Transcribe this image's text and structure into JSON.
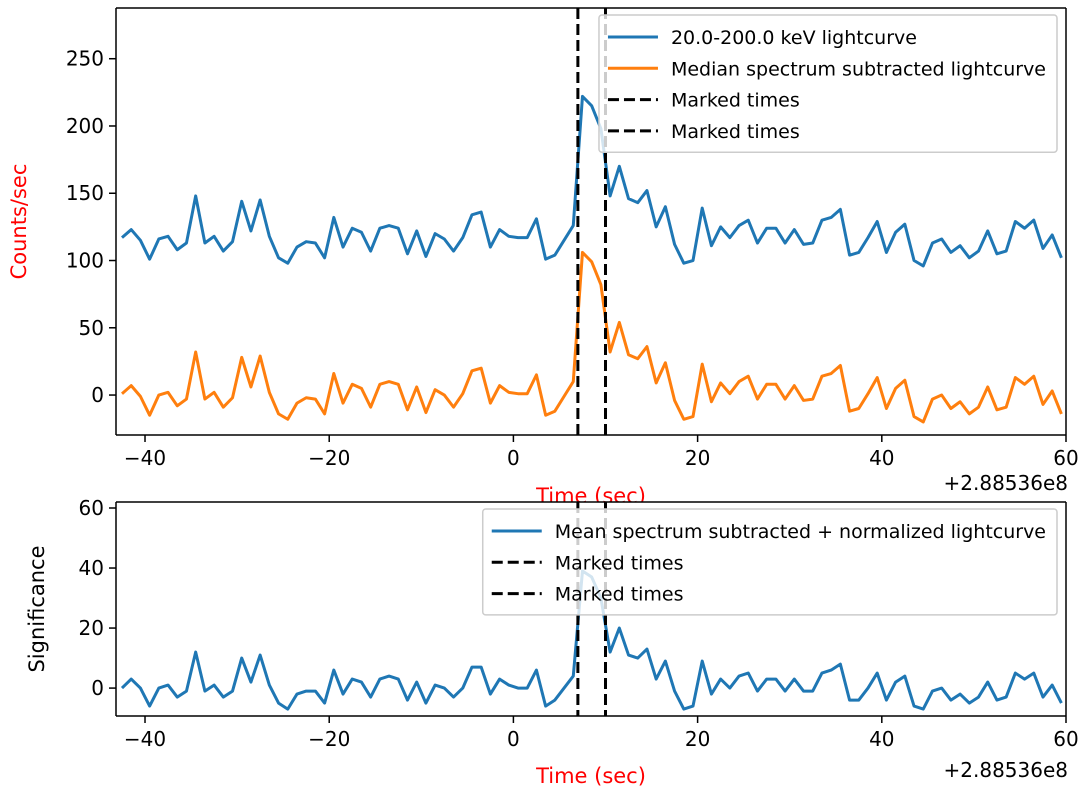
{
  "chart_data": [
    {
      "type": "line",
      "x": [
        -42.5,
        -41.5,
        -40.5,
        -39.5,
        -38.5,
        -37.5,
        -36.5,
        -35.5,
        -34.5,
        -33.5,
        -32.5,
        -31.5,
        -30.5,
        -29.5,
        -28.5,
        -27.5,
        -26.5,
        -25.5,
        -24.5,
        -23.5,
        -22.5,
        -21.5,
        -20.5,
        -19.5,
        -18.5,
        -17.5,
        -16.5,
        -15.5,
        -14.5,
        -13.5,
        -12.5,
        -11.5,
        -10.5,
        -9.5,
        -8.5,
        -7.5,
        -6.5,
        -5.5,
        -4.5,
        -3.5,
        -2.5,
        -1.5,
        -0.5,
        0.5,
        1.5,
        2.5,
        3.5,
        4.5,
        5.5,
        6.5,
        7.5,
        8.5,
        9.5,
        10.5,
        11.5,
        12.5,
        13.5,
        14.5,
        15.5,
        16.5,
        17.5,
        18.5,
        19.5,
        20.5,
        21.5,
        22.5,
        23.5,
        24.5,
        25.5,
        26.5,
        27.5,
        28.5,
        29.5,
        30.5,
        31.5,
        32.5,
        33.5,
        34.5,
        35.5,
        36.5,
        37.5,
        38.5,
        39.5,
        40.5,
        41.5,
        42.5,
        43.5,
        44.5,
        45.5,
        46.5,
        47.5,
        48.5,
        49.5,
        50.5,
        51.5,
        52.5,
        53.5,
        54.5,
        55.5,
        56.5,
        57.5,
        58.5,
        59.5
      ],
      "series": [
        {
          "name": "20.0-200.0 keV lightcurve",
          "color": "#1f77b4",
          "values": [
            117,
            123,
            115,
            101,
            116,
            118,
            108,
            113,
            148,
            113,
            118,
            107,
            114,
            144,
            122,
            145,
            118,
            102,
            98,
            110,
            114,
            113,
            102,
            132,
            110,
            124,
            121,
            107,
            124,
            126,
            124,
            105,
            122,
            103,
            120,
            116,
            107,
            117,
            134,
            136,
            110,
            123,
            118,
            117,
            117,
            131,
            101,
            104,
            115,
            126,
            222,
            215,
            198,
            148,
            170,
            146,
            143,
            152,
            125,
            140,
            112,
            98,
            100,
            139,
            111,
            125,
            117,
            126,
            130,
            113,
            124,
            124,
            113,
            123,
            112,
            113,
            130,
            132,
            138,
            104,
            106,
            117,
            129,
            106,
            121,
            127,
            100,
            96,
            113,
            116,
            106,
            111,
            102,
            107,
            122,
            105,
            107,
            129,
            124,
            130,
            109,
            119,
            102
          ]
        },
        {
          "name": "Median spectrum subtracted lightcurve",
          "color": "#ff7f0e",
          "values": [
            1,
            7,
            -1,
            -15,
            0,
            2,
            -8,
            -3,
            32,
            -3,
            2,
            -9,
            -2,
            28,
            6,
            29,
            2,
            -14,
            -18,
            -6,
            -2,
            -3,
            -14,
            16,
            -6,
            8,
            5,
            -9,
            8,
            10,
            8,
            -11,
            6,
            -13,
            4,
            0,
            -9,
            1,
            18,
            20,
            -6,
            7,
            2,
            1,
            1,
            15,
            -15,
            -12,
            -1,
            10,
            106,
            99,
            82,
            32,
            54,
            30,
            27,
            36,
            9,
            24,
            -4,
            -18,
            -16,
            23,
            -5,
            9,
            1,
            10,
            14,
            -3,
            8,
            8,
            -3,
            7,
            -4,
            -3,
            14,
            16,
            22,
            -12,
            -10,
            1,
            13,
            -10,
            5,
            11,
            -16,
            -20,
            -3,
            0,
            -10,
            -5,
            -14,
            -9,
            6,
            -11,
            -9,
            13,
            8,
            14,
            -7,
            3,
            -14
          ]
        }
      ],
      "markers": [
        {
          "name": "Marked times",
          "x": 7.0,
          "color": "#000000"
        },
        {
          "name": "Marked times",
          "x": 10.0,
          "color": "#000000"
        }
      ],
      "xlabel": "Time (sec)",
      "xlabel_color": "#ff0000",
      "ylabel": "Counts/sec",
      "ylabel_color": "#ff0000",
      "x_offset_text": "+2.88536e8",
      "xlim": [
        -43.15,
        60
      ],
      "ylim": [
        -29.7,
        287.7
      ],
      "xticks": [
        {
          "value": -40,
          "label": "−40"
        },
        {
          "value": -20,
          "label": "−20"
        },
        0,
        20,
        40,
        60
      ],
      "yticks": [
        0,
        50,
        100,
        150,
        200,
        250
      ],
      "legend": "upper right"
    },
    {
      "type": "line",
      "x": [
        -42.5,
        -41.5,
        -40.5,
        -39.5,
        -38.5,
        -37.5,
        -36.5,
        -35.5,
        -34.5,
        -33.5,
        -32.5,
        -31.5,
        -30.5,
        -29.5,
        -28.5,
        -27.5,
        -26.5,
        -25.5,
        -24.5,
        -23.5,
        -22.5,
        -21.5,
        -20.5,
        -19.5,
        -18.5,
        -17.5,
        -16.5,
        -15.5,
        -14.5,
        -13.5,
        -12.5,
        -11.5,
        -10.5,
        -9.5,
        -8.5,
        -7.5,
        -6.5,
        -5.5,
        -4.5,
        -3.5,
        -2.5,
        -1.5,
        -0.5,
        0.5,
        1.5,
        2.5,
        3.5,
        4.5,
        5.5,
        6.5,
        7.5,
        8.5,
        9.5,
        10.5,
        11.5,
        12.5,
        13.5,
        14.5,
        15.5,
        16.5,
        17.5,
        18.5,
        19.5,
        20.5,
        21.5,
        22.5,
        23.5,
        24.5,
        25.5,
        26.5,
        27.5,
        28.5,
        29.5,
        30.5,
        31.5,
        32.5,
        33.5,
        34.5,
        35.5,
        36.5,
        37.5,
        38.5,
        39.5,
        40.5,
        41.5,
        42.5,
        43.5,
        44.5,
        45.5,
        46.5,
        47.5,
        48.5,
        49.5,
        50.5,
        51.5,
        52.5,
        53.5,
        54.5,
        55.5,
        56.5,
        57.5,
        58.5,
        59.5
      ],
      "series": [
        {
          "name": "Mean spectrum subtracted + normalized lightcurve",
          "color": "#1f77b4",
          "values": [
            0,
            3,
            0,
            -6,
            0,
            1,
            -3,
            -1,
            12,
            -1,
            1,
            -3,
            -1,
            10,
            2,
            11,
            1,
            -5,
            -7,
            -2,
            -1,
            -1,
            -5,
            6,
            -2,
            3,
            2,
            -3,
            3,
            4,
            3,
            -4,
            2,
            -5,
            1,
            0,
            -3,
            0,
            7,
            7,
            -2,
            3,
            1,
            0,
            0,
            6,
            -6,
            -4,
            0,
            4,
            39,
            37,
            30,
            12,
            20,
            11,
            10,
            13,
            3,
            9,
            -1,
            -7,
            -6,
            9,
            -2,
            3,
            0,
            4,
            5,
            -1,
            3,
            3,
            -1,
            3,
            -1,
            -1,
            5,
            6,
            8,
            -4,
            -4,
            0,
            5,
            -4,
            2,
            4,
            -6,
            -7,
            -1,
            0,
            -4,
            -2,
            -5,
            -3,
            2,
            -4,
            -3,
            5,
            3,
            5,
            -3,
            1,
            -5
          ]
        }
      ],
      "markers": [
        {
          "name": "Marked times",
          "x": 7.0,
          "color": "#000000"
        },
        {
          "name": "Marked times",
          "x": 10.0,
          "color": "#000000"
        }
      ],
      "xlabel": "Time (sec)",
      "xlabel_color": "#ff0000",
      "ylabel": "Significance",
      "ylabel_color": "#000000",
      "x_offset_text": "+2.88536e8",
      "xlim": [
        -43.15,
        60
      ],
      "ylim": [
        -9.3,
        62
      ],
      "xticks": [
        {
          "value": -40,
          "label": "−40"
        },
        {
          "value": -20,
          "label": "−20"
        },
        0,
        20,
        40,
        60
      ],
      "yticks": [
        0,
        20,
        40,
        60
      ],
      "legend": "upper right"
    }
  ]
}
